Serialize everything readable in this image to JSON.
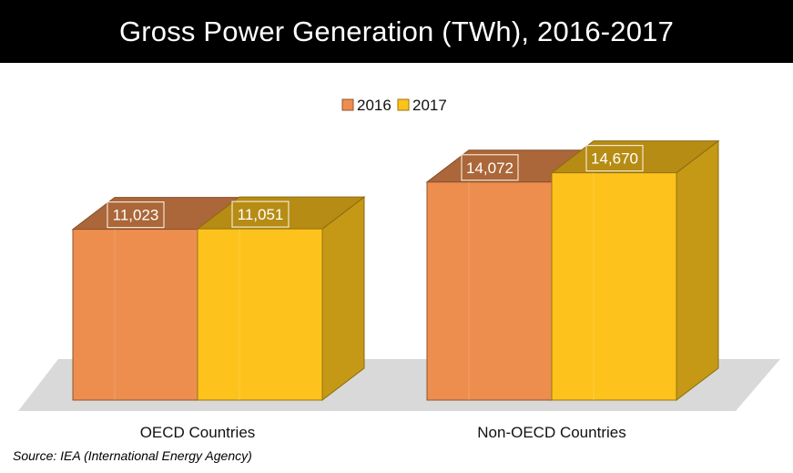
{
  "chart_data": {
    "type": "bar",
    "title": "Gross Power Generation (TWh), 2016-2017",
    "categories": [
      "OECD Countries",
      "Non-OECD Countries"
    ],
    "series": [
      {
        "name": "2016",
        "values": [
          11023,
          14072
        ],
        "labels": [
          "11,023",
          "14,072"
        ],
        "color": "#ED8E4F"
      },
      {
        "name": "2017",
        "values": [
          11051,
          14670
        ],
        "labels": [
          "11,051",
          "14,670"
        ],
        "color": "#FDC31C"
      }
    ],
    "xlabel": "",
    "ylabel": "",
    "ylim": [
      0,
      17000
    ],
    "grid": false,
    "legend": "top-center",
    "style": "3d-clustered"
  },
  "source_note": "Source: IEA (International Energy Agency)"
}
